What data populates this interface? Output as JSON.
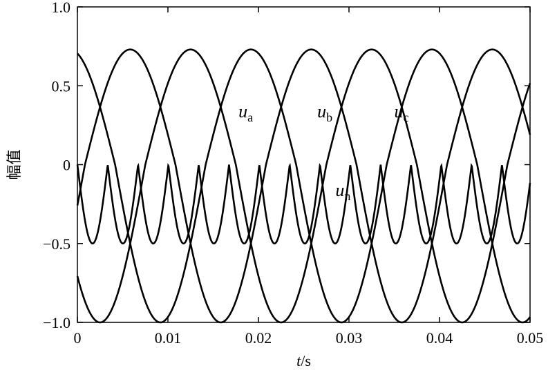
{
  "chart_data": {
    "type": "line",
    "title": "",
    "xlabel": {
      "var": "t",
      "unit": "/s"
    },
    "ylabel": "幅值",
    "xlim": [
      0,
      0.05
    ],
    "ylim": [
      -1.0,
      1.0
    ],
    "x_ticks": [
      0,
      0.01,
      0.02,
      0.03,
      0.04,
      0.05
    ],
    "x_tick_labels": [
      "0",
      "0.01",
      "0.02",
      "0.03",
      "0.04",
      "0.05"
    ],
    "y_ticks": [
      1.0,
      0.5,
      0,
      -0.5,
      -1.0
    ],
    "y_tick_labels": [
      "1.0",
      "0.5",
      "0",
      "−0.5",
      "−1.0"
    ],
    "grid": false,
    "series": [
      {
        "name": "ua",
        "label_main": "u",
        "label_sub": "a",
        "period": 0.02,
        "phase_deg": -15,
        "x": [
          0,
          0.0058,
          0.0075,
          0.0108,
          0.0192,
          0.0275,
          0.0358,
          0.0442,
          0.05
        ],
        "values": [
          -0.1,
          0.5,
          0.73,
          0.0,
          -1.0,
          0.0,
          0.73,
          0.0,
          -1.0
        ]
      },
      {
        "name": "ub",
        "label_main": "u",
        "label_sub": "b",
        "period": 0.02,
        "phase_deg": -135,
        "x": [
          0,
          0.0042,
          0.0142,
          0.0242,
          0.0342,
          0.0442
        ],
        "values": [
          -0.7,
          -1.0,
          0.73,
          -1.0,
          0.73,
          -1.0
        ]
      },
      {
        "name": "uc",
        "label_main": "u",
        "label_sub": "c",
        "period": 0.02,
        "phase_deg": 105,
        "x": [
          0,
          0.0025,
          0.0125,
          0.0225,
          0.0325,
          0.0425
        ],
        "values": [
          0.7,
          0.73,
          -1.0,
          0.73,
          -1.0,
          0.73
        ]
      },
      {
        "name": "un",
        "label_main": "u",
        "label_sub": "n",
        "period": 0.0067,
        "x": [
          0,
          0.0033,
          0.0067,
          0.01,
          0.0133
        ],
        "values": [
          -0.13,
          0.0,
          -0.5,
          0.0,
          -0.5
        ]
      }
    ],
    "annotations": [
      {
        "series": "ua",
        "x": 0.0178,
        "y": 0.3
      },
      {
        "series": "ub",
        "x": 0.0265,
        "y": 0.3
      },
      {
        "series": "uc",
        "x": 0.035,
        "y": 0.3
      },
      {
        "series": "un",
        "x": 0.0285,
        "y": -0.2
      }
    ]
  }
}
